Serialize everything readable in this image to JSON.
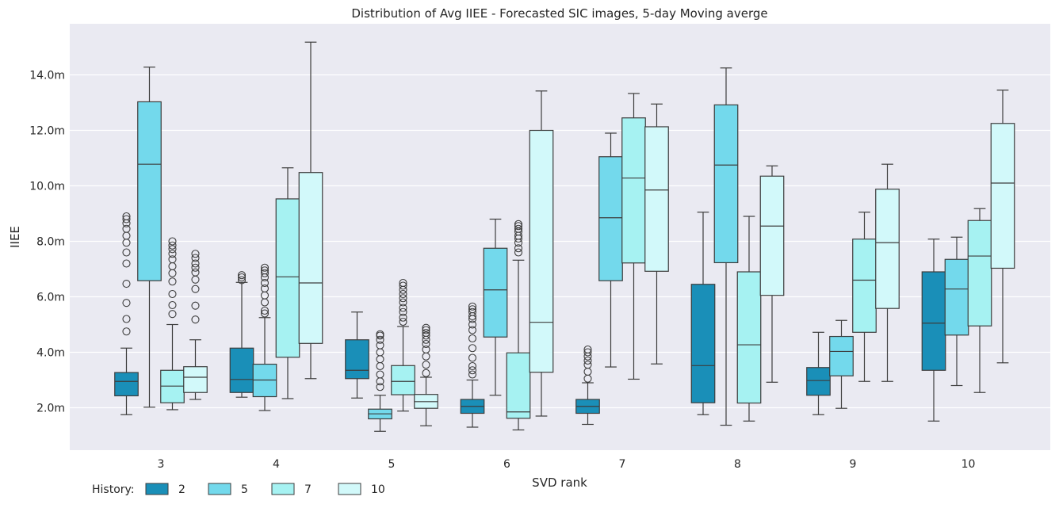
{
  "chart_data": {
    "type": "box",
    "title": "Distribution of Avg IIEE - Forecasted SIC images, 5-day Moving averge",
    "xlabel": "SVD rank",
    "ylabel": "IIEE",
    "ylim": [
      0.4,
      15.8
    ],
    "yticks": [
      2.0,
      4.0,
      6.0,
      8.0,
      10.0,
      12.0,
      14.0
    ],
    "ytick_labels": [
      "2.0m",
      "4.0m",
      "6.0m",
      "8.0m",
      "10.0m",
      "12.0m",
      "14.0m"
    ],
    "y_unit": "m",
    "categories": [
      "3",
      "4",
      "5",
      "6",
      "7",
      "8",
      "9",
      "10"
    ],
    "grid": true,
    "legend": {
      "title": "History:",
      "placement": "bottom-left",
      "ncol": 4
    },
    "series": [
      {
        "name": "2",
        "color": "#1a8fb8",
        "boxes": [
          {
            "whislo": 1.75,
            "q1": 2.43,
            "med": 2.95,
            "q3": 3.27,
            "whishi": 4.15,
            "fliers": [
              4.75,
              5.2,
              5.78,
              6.47,
              7.2,
              7.6,
              7.95,
              8.2,
              8.45,
              8.65,
              8.8,
              8.9
            ]
          },
          {
            "whislo": 2.38,
            "q1": 2.55,
            "med": 3.02,
            "q3": 4.15,
            "whishi": 6.52,
            "fliers": [
              6.6,
              6.7,
              6.78
            ]
          },
          {
            "whislo": 2.35,
            "q1": 3.05,
            "med": 3.35,
            "q3": 4.45,
            "whishi": 5.45,
            "fliers": []
          },
          {
            "whislo": 1.3,
            "q1": 1.8,
            "med": 2.05,
            "q3": 2.3,
            "whishi": 3.0,
            "fliers": [
              3.2,
              3.35,
              3.5,
              3.8,
              4.15,
              4.5,
              4.8,
              5.0,
              5.2,
              5.3,
              5.45,
              5.55,
              5.65
            ]
          },
          {
            "whislo": 1.4,
            "q1": 1.8,
            "med": 2.05,
            "q3": 2.3,
            "whishi": 2.9,
            "fliers": [
              3.05,
              3.3,
              3.55,
              3.7,
              3.85,
              4.0,
              4.1
            ]
          },
          {
            "whislo": 1.75,
            "q1": 2.18,
            "med": 3.52,
            "q3": 6.45,
            "whishi": 9.05,
            "fliers": []
          },
          {
            "whislo": 1.75,
            "q1": 2.45,
            "med": 2.98,
            "q3": 3.45,
            "whishi": 4.72,
            "fliers": []
          },
          {
            "whislo": 1.52,
            "q1": 3.35,
            "med": 5.05,
            "q3": 6.9,
            "whishi": 8.08,
            "fliers": []
          }
        ]
      },
      {
        "name": "5",
        "color": "#73d9ec",
        "boxes": [
          {
            "whislo": 2.02,
            "q1": 6.58,
            "med": 10.78,
            "q3": 13.03,
            "whishi": 14.28,
            "fliers": []
          },
          {
            "whislo": 1.9,
            "q1": 2.4,
            "med": 3.0,
            "q3": 3.57,
            "whishi": 5.25,
            "fliers": [
              5.4,
              5.5,
              5.8,
              6.05,
              6.3,
              6.5,
              6.7,
              6.85,
              6.95,
              7.05
            ]
          },
          {
            "whislo": 1.15,
            "q1": 1.6,
            "med": 1.78,
            "q3": 1.95,
            "whishi": 2.45,
            "fliers": [
              2.75,
              2.95,
              3.2,
              3.5,
              3.75,
              4.0,
              4.25,
              4.45,
              4.6,
              4.65
            ]
          },
          {
            "whislo": 2.45,
            "q1": 4.55,
            "med": 6.25,
            "q3": 7.75,
            "whishi": 8.8,
            "fliers": []
          },
          {
            "whislo": 3.47,
            "q1": 6.58,
            "med": 8.85,
            "q3": 11.05,
            "whishi": 11.9,
            "fliers": []
          },
          {
            "whislo": 1.37,
            "q1": 7.23,
            "med": 10.75,
            "q3": 12.92,
            "whishi": 14.25,
            "fliers": []
          },
          {
            "whislo": 1.98,
            "q1": 3.15,
            "med": 4.03,
            "q3": 4.57,
            "whishi": 5.15,
            "fliers": []
          },
          {
            "whislo": 2.8,
            "q1": 4.62,
            "med": 6.28,
            "q3": 7.35,
            "whishi": 8.15,
            "fliers": []
          }
        ]
      },
      {
        "name": "7",
        "color": "#a6f2f2",
        "boxes": [
          {
            "whislo": 1.93,
            "q1": 2.18,
            "med": 2.78,
            "q3": 3.35,
            "whishi": 5.0,
            "fliers": [
              5.38,
              5.7,
              6.1,
              6.55,
              6.85,
              7.1,
              7.35,
              7.55,
              7.72,
              7.85,
              8.0
            ]
          },
          {
            "whislo": 2.33,
            "q1": 3.82,
            "med": 6.72,
            "q3": 9.53,
            "whishi": 10.65,
            "fliers": []
          },
          {
            "whislo": 1.88,
            "q1": 2.47,
            "med": 2.95,
            "q3": 3.52,
            "whishi": 4.93,
            "fliers": [
              5.1,
              5.25,
              5.45,
              5.6,
              5.8,
              5.95,
              6.1,
              6.25,
              6.4,
              6.5
            ]
          },
          {
            "whislo": 1.2,
            "q1": 1.62,
            "med": 1.85,
            "q3": 3.98,
            "whishi": 7.32,
            "fliers": [
              7.6,
              7.75,
              7.95,
              8.1,
              8.2,
              8.35,
              8.45,
              8.55,
              8.62
            ]
          },
          {
            "whislo": 3.03,
            "q1": 7.22,
            "med": 10.28,
            "q3": 12.45,
            "whishi": 13.33,
            "fliers": []
          },
          {
            "whislo": 1.52,
            "q1": 2.17,
            "med": 4.27,
            "q3": 6.9,
            "whishi": 8.9,
            "fliers": []
          },
          {
            "whislo": 2.95,
            "q1": 4.72,
            "med": 6.6,
            "q3": 8.08,
            "whishi": 9.05,
            "fliers": []
          },
          {
            "whislo": 2.55,
            "q1": 4.95,
            "med": 7.47,
            "q3": 8.75,
            "whishi": 9.18,
            "fliers": []
          }
        ]
      },
      {
        "name": "10",
        "color": "#d2f9fa",
        "boxes": [
          {
            "whislo": 2.3,
            "q1": 2.55,
            "med": 3.1,
            "q3": 3.48,
            "whishi": 4.45,
            "fliers": [
              5.18,
              5.68,
              6.28,
              6.62,
              6.88,
              7.05,
              7.2,
              7.4,
              7.55
            ]
          },
          {
            "whislo": 3.05,
            "q1": 4.32,
            "med": 6.5,
            "q3": 10.48,
            "whishi": 15.18,
            "fliers": []
          },
          {
            "whislo": 1.35,
            "q1": 1.98,
            "med": 2.22,
            "q3": 2.48,
            "whishi": 3.1,
            "fliers": [
              3.25,
              3.55,
              3.85,
              4.1,
              4.3,
              4.45,
              4.6,
              4.7,
              4.8,
              4.88
            ]
          },
          {
            "whislo": 1.7,
            "q1": 3.28,
            "med": 5.08,
            "q3": 12.0,
            "whishi": 13.42,
            "fliers": []
          },
          {
            "whislo": 3.58,
            "q1": 6.92,
            "med": 9.85,
            "q3": 12.13,
            "whishi": 12.95,
            "fliers": []
          },
          {
            "whislo": 2.92,
            "q1": 6.05,
            "med": 8.55,
            "q3": 10.35,
            "whishi": 10.72,
            "fliers": []
          },
          {
            "whislo": 2.95,
            "q1": 5.58,
            "med": 7.95,
            "q3": 9.88,
            "whishi": 10.78,
            "fliers": []
          },
          {
            "whislo": 3.62,
            "q1": 7.03,
            "med": 10.1,
            "q3": 12.25,
            "whishi": 13.45,
            "fliers": []
          }
        ]
      }
    ]
  }
}
